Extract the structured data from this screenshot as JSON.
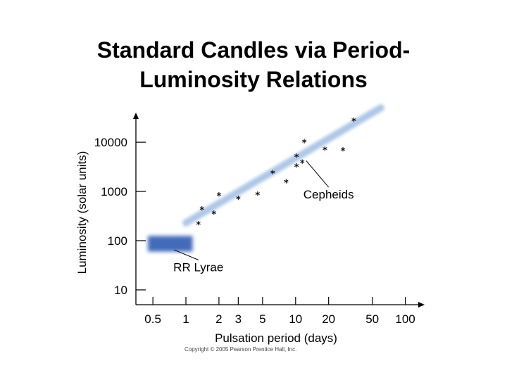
{
  "title_line1": "Standard Candles via Period-",
  "title_line2": "Luminosity Relations",
  "copyright": "Copyright © 2005 Pearson Prentice Hall, Inc.",
  "colors": {
    "band": "#a9c4e6",
    "rr_box": "#2d5bb3",
    "point": "#111111",
    "axis": "#000000"
  },
  "chart_data": {
    "type": "scatter",
    "xlabel": "Pulsation period (days)",
    "ylabel": "Luminosity (solar units)",
    "x_scale": "log",
    "y_scale": "log",
    "xlim": [
      0.35,
      150
    ],
    "ylim": [
      5,
      40000
    ],
    "x_ticks": [
      0.5,
      1,
      2,
      3,
      5,
      10,
      20,
      50,
      100
    ],
    "x_tick_labels": [
      "0.5",
      "1",
      "2",
      "3",
      "5",
      "10",
      "20",
      "50",
      "100"
    ],
    "y_ticks": [
      10,
      100,
      1000,
      10000
    ],
    "y_tick_labels": [
      "10",
      "100",
      "1000",
      "10000"
    ],
    "series": [
      {
        "name": "Cepheids",
        "points": [
          [
            1.3,
            220
          ],
          [
            1.4,
            440
          ],
          [
            1.8,
            360
          ],
          [
            2.0,
            850
          ],
          [
            3.0,
            720
          ],
          [
            4.5,
            880
          ],
          [
            6.2,
            2400
          ],
          [
            8.2,
            1550
          ],
          [
            10.2,
            3300
          ],
          [
            10.2,
            5200
          ],
          [
            11.5,
            3900
          ],
          [
            12.0,
            10200
          ],
          [
            18.5,
            7200
          ],
          [
            27.0,
            7000
          ],
          [
            34.0,
            28000
          ]
        ]
      }
    ],
    "band": {
      "from": [
        1.0,
        230
      ],
      "to": [
        60,
        50000
      ]
    },
    "rr_lyrae_region": {
      "x": [
        0.45,
        1.15
      ],
      "y": [
        60,
        125
      ]
    },
    "annotations": [
      {
        "text": "Cepheids",
        "target": [
          12.5,
          4200
        ],
        "label_at": [
          20,
          720
        ]
      },
      {
        "text": "RR Lyrae",
        "target": [
          0.78,
          65
        ],
        "label_at": [
          1.3,
          24
        ]
      }
    ]
  }
}
